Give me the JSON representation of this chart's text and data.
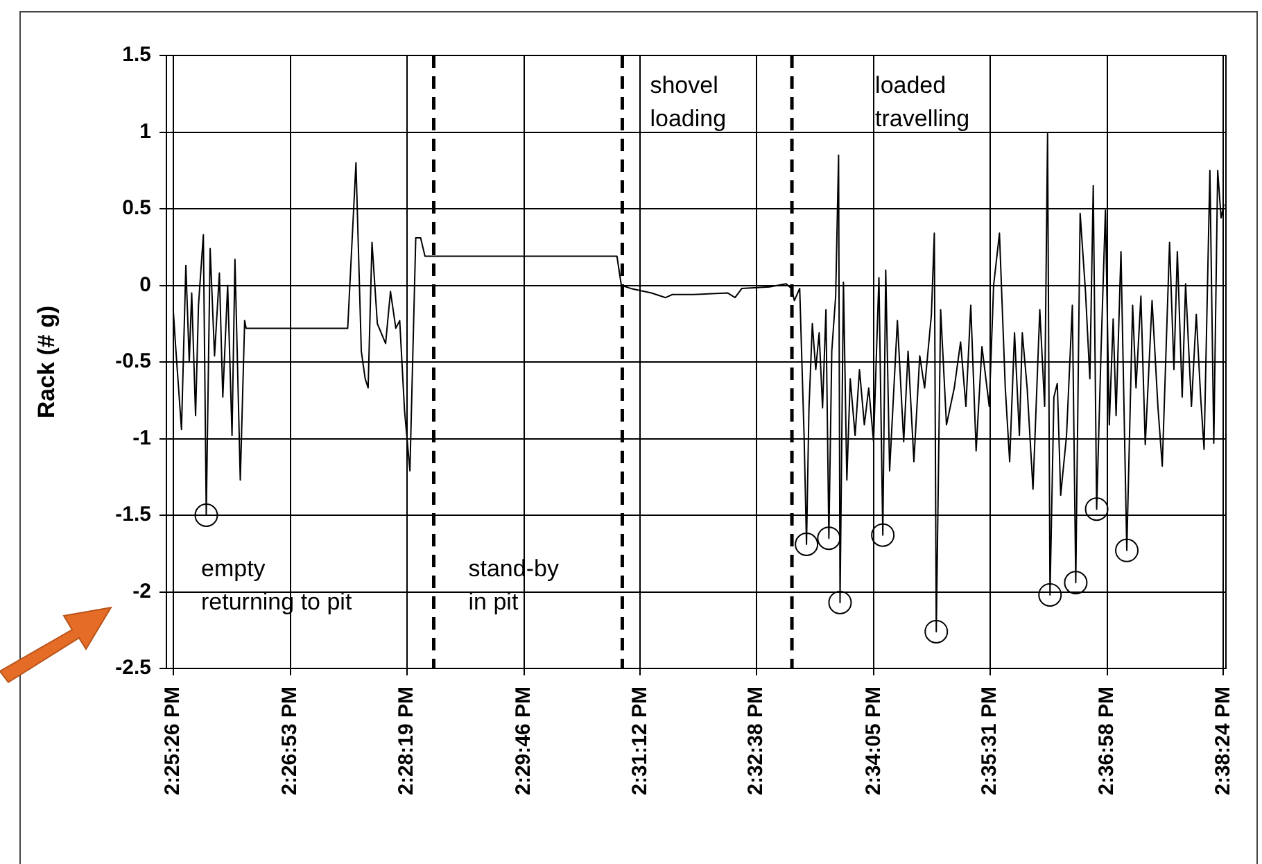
{
  "chart_data": {
    "type": "line",
    "ylabel": "Rack (# g)",
    "grid": true,
    "legend": false,
    "xlim": [
      14.4225,
      14.6405
    ],
    "xticks": [
      {
        "value": 14.423889,
        "label": "2:25:26 PM"
      },
      {
        "value": 14.448056,
        "label": "2:26:53 PM"
      },
      {
        "value": 14.471944,
        "label": "2:28:19 PM"
      },
      {
        "value": 14.496111,
        "label": "2:29:46 PM"
      },
      {
        "value": 14.52,
        "label": "2:31:12 PM"
      },
      {
        "value": 14.543889,
        "label": "2:32:38 PM"
      },
      {
        "value": 14.568056,
        "label": "2:34:05 PM"
      },
      {
        "value": 14.591944,
        "label": "2:35:31 PM"
      },
      {
        "value": 14.616111,
        "label": "2:36:58 PM"
      },
      {
        "value": 14.64,
        "label": "2:38:24 PM"
      }
    ],
    "ylim": [
      -2.5,
      1.5
    ],
    "yticks": [
      -2.5,
      -2,
      -1.5,
      -1,
      -0.5,
      0,
      0.5,
      1,
      1.5
    ],
    "ref_lines": [
      {
        "axis": "x",
        "value": 14.4775,
        "color": "#000000",
        "line_style": "dashed"
      },
      {
        "axis": "x",
        "value": 14.5163,
        "color": "#000000",
        "line_style": "dashed"
      },
      {
        "axis": "x",
        "value": 14.5512,
        "color": "#000000",
        "line_style": "dashed"
      }
    ],
    "annotations": [
      "empty\nreturning to pit",
      "stand-by\nin pit",
      "shovel\nloading",
      "loaded\ntravelling"
    ],
    "series": [
      {
        "color": "#000000",
        "x": [
          14.4239,
          14.4244,
          14.4256,
          14.4265,
          14.4272,
          14.4277,
          14.4285,
          14.4291,
          14.4301,
          14.4307,
          14.4315,
          14.4324,
          14.4334,
          14.4341,
          14.4351,
          14.436,
          14.4366,
          14.4377,
          14.4386,
          14.4389,
          14.4598,
          14.4615,
          14.4626,
          14.4634,
          14.464,
          14.4648,
          14.4659,
          14.4676,
          14.4686,
          14.4697,
          14.4705,
          14.4715,
          14.4726,
          14.4738,
          14.4748,
          14.4757,
          14.5152,
          14.5161,
          14.518,
          14.5223,
          14.5252,
          14.5266,
          14.5309,
          14.538,
          14.5395,
          14.5409,
          14.5466,
          14.55,
          14.5511,
          14.5517,
          14.5528,
          14.5537,
          14.5542,
          14.5547,
          14.5554,
          14.5561,
          14.5568,
          14.5575,
          14.5582,
          14.5588,
          14.5594,
          14.5602,
          14.5608,
          14.5611,
          14.5618,
          14.5625,
          14.5632,
          14.5642,
          14.5651,
          14.5661,
          14.567,
          14.568,
          14.5691,
          14.5699,
          14.5705,
          14.5713,
          14.5729,
          14.5742,
          14.5751,
          14.5763,
          14.5775,
          14.5785,
          14.5799,
          14.5805,
          14.5809,
          14.5818,
          14.583,
          14.5846,
          14.5859,
          14.587,
          14.588,
          14.5891,
          14.5903,
          14.5918,
          14.5927,
          14.5939,
          14.5951,
          14.596,
          14.597,
          14.598,
          14.5986,
          14.5996,
          14.6008,
          14.6022,
          14.6032,
          14.6038,
          14.6043,
          14.6051,
          14.6058,
          14.6065,
          14.6077,
          14.6089,
          14.6096,
          14.6105,
          14.6116,
          14.6125,
          14.6132,
          14.6139,
          14.6148,
          14.6157,
          14.6165,
          14.6173,
          14.6179,
          14.6189,
          14.6201,
          14.6213,
          14.622,
          14.623,
          14.6239,
          14.6253,
          14.6265,
          14.6274,
          14.6289,
          14.6298,
          14.6305,
          14.6315,
          14.6322,
          14.6334,
          14.6344,
          14.6353,
          14.636,
          14.6372,
          14.638,
          14.6388,
          14.6395,
          14.6401
        ],
        "values": [
          -0.16,
          -0.4,
          -0.94,
          0.13,
          -0.5,
          -0.05,
          -0.85,
          -0.13,
          0.33,
          -1.5,
          0.24,
          -0.46,
          0.08,
          -0.73,
          0,
          -0.98,
          0.17,
          -1.27,
          -0.23,
          -0.28,
          -0.28,
          0.8,
          -0.43,
          -0.61,
          -0.67,
          0.28,
          -0.25,
          -0.38,
          -0.04,
          -0.28,
          -0.23,
          -0.82,
          -1.21,
          0.31,
          0.31,
          0.19,
          0.19,
          0,
          -0.02,
          -0.05,
          -0.08,
          -0.06,
          -0.06,
          -0.05,
          -0.08,
          -0.02,
          -0.01,
          0.01,
          -0.02,
          -0.1,
          -0.02,
          -0.98,
          -1.69,
          -0.81,
          -0.25,
          -0.55,
          -0.31,
          -0.8,
          -0.16,
          -1.65,
          -0.43,
          -0.07,
          0.85,
          -2.07,
          0.02,
          -1.27,
          -0.61,
          -0.98,
          -0.55,
          -0.91,
          -0.67,
          -1.02,
          0.05,
          -1.63,
          0.1,
          -1.21,
          -0.23,
          -1.02,
          -0.43,
          -1.15,
          -0.46,
          -0.67,
          -0.19,
          0.34,
          -2.26,
          -0.16,
          -0.91,
          -0.67,
          -0.37,
          -0.79,
          -0.13,
          -1.08,
          -0.4,
          -0.79,
          0,
          0.34,
          -0.67,
          -1.15,
          -0.31,
          -0.98,
          -0.31,
          -0.67,
          -1.33,
          -0.16,
          -0.79,
          0.99,
          -2.02,
          -0.73,
          -0.64,
          -1.37,
          -0.98,
          -0.13,
          -1.94,
          0.47,
          -0.04,
          -0.61,
          0.65,
          -1.46,
          -0.43,
          0.49,
          -0.91,
          -0.22,
          -0.85,
          0.22,
          -1.73,
          -0.13,
          -0.67,
          -0.07,
          -1.04,
          -0.1,
          -0.79,
          -1.18,
          0.28,
          -0.55,
          0.22,
          -0.73,
          0.01,
          -0.79,
          -0.19,
          -0.73,
          -1.07,
          0.75,
          -1.03,
          0.75,
          0.44,
          0.53
        ]
      },
      {
        "type": "scatter",
        "color": "#000000",
        "marker": "circle",
        "x": [
          14.4307,
          14.5542,
          14.5588,
          14.5611,
          14.5699,
          14.5809,
          14.6043,
          14.6096,
          14.6139,
          14.6201
        ],
        "values": [
          -1.5,
          -1.69,
          -1.65,
          -2.07,
          -1.63,
          -2.26,
          -2.02,
          -1.94,
          -1.46,
          -1.73
        ]
      }
    ]
  }
}
